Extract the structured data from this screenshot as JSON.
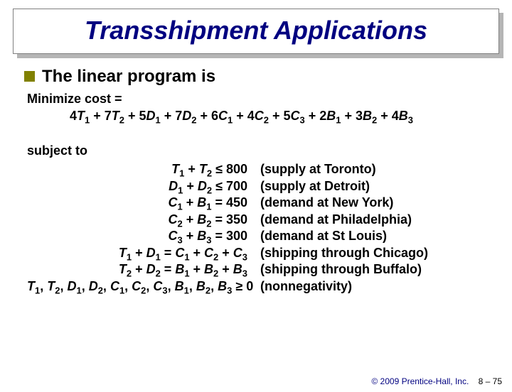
{
  "title": "Transshipment Applications",
  "bullet": "The linear program is",
  "minimize_label": "Minimize cost =",
  "subject_to": "subject to",
  "obj_terms": [
    {
      "c": "4",
      "v": "T",
      "s": "1"
    },
    {
      "c": "7",
      "v": "T",
      "s": "2"
    },
    {
      "c": "5",
      "v": "D",
      "s": "1"
    },
    {
      "c": "7",
      "v": "D",
      "s": "2"
    },
    {
      "c": "6",
      "v": "C",
      "s": "1"
    },
    {
      "c": "4",
      "v": "C",
      "s": "2"
    },
    {
      "c": "5",
      "v": "C",
      "s": "3"
    },
    {
      "c": "2",
      "v": "B",
      "s": "1"
    },
    {
      "c": "3",
      "v": "B",
      "s": "2"
    },
    {
      "c": "4",
      "v": "B",
      "s": "3"
    }
  ],
  "constraints": [
    {
      "lhs_vars": [
        {
          "v": "T",
          "s": "1"
        },
        {
          "v": "T",
          "s": "2"
        }
      ],
      "op": "≤",
      "rhs_text": "800",
      "desc": "(supply at Toronto)"
    },
    {
      "lhs_vars": [
        {
          "v": "D",
          "s": "1"
        },
        {
          "v": "D",
          "s": "2"
        }
      ],
      "op": "≤",
      "rhs_text": "700",
      "desc": "(supply at Detroit)"
    },
    {
      "lhs_vars": [
        {
          "v": "C",
          "s": "1"
        },
        {
          "v": "B",
          "s": "1"
        }
      ],
      "op": "=",
      "rhs_text": "450",
      "desc": "(demand at New York)"
    },
    {
      "lhs_vars": [
        {
          "v": "C",
          "s": "2"
        },
        {
          "v": "B",
          "s": "2"
        }
      ],
      "op": "=",
      "rhs_text": "350",
      "desc": "(demand at Philadelphia)"
    },
    {
      "lhs_vars": [
        {
          "v": "C",
          "s": "3"
        },
        {
          "v": "B",
          "s": "3"
        }
      ],
      "op": "=",
      "rhs_text": "300",
      "desc": "(demand at St Louis)"
    },
    {
      "lhs_vars": [
        {
          "v": "T",
          "s": "1"
        },
        {
          "v": "D",
          "s": "1"
        }
      ],
      "op": "=",
      "rhs_vars": [
        {
          "v": "C",
          "s": "1"
        },
        {
          "v": "C",
          "s": "2"
        },
        {
          "v": "C",
          "s": "3"
        }
      ],
      "desc": "(shipping through Chicago)"
    },
    {
      "lhs_vars": [
        {
          "v": "T",
          "s": "2"
        },
        {
          "v": "D",
          "s": "2"
        }
      ],
      "op": "=",
      "rhs_vars": [
        {
          "v": "B",
          "s": "1"
        },
        {
          "v": "B",
          "s": "2"
        },
        {
          "v": "B",
          "s": "3"
        }
      ],
      "desc": "(shipping through Buffalo)"
    }
  ],
  "nonneg": {
    "vars": [
      {
        "v": "T",
        "s": "1"
      },
      {
        "v": "T",
        "s": "2"
      },
      {
        "v": "D",
        "s": "1"
      },
      {
        "v": "D",
        "s": "2"
      },
      {
        "v": "C",
        "s": "1"
      },
      {
        "v": "C",
        "s": "2"
      },
      {
        "v": "C",
        "s": "3"
      },
      {
        "v": "B",
        "s": "1"
      },
      {
        "v": "B",
        "s": "2"
      },
      {
        "v": "B",
        "s": "3"
      }
    ],
    "op": "≥",
    "rhs": "0",
    "desc": "(nonnegativity)"
  },
  "footer_copyright": "© 2009 Prentice-Hall, Inc.",
  "footer_page": "8 – 75",
  "colors": {
    "title_color": "#000080",
    "bullet_color": "#818100",
    "text_color": "#000000",
    "background": "#ffffff"
  }
}
